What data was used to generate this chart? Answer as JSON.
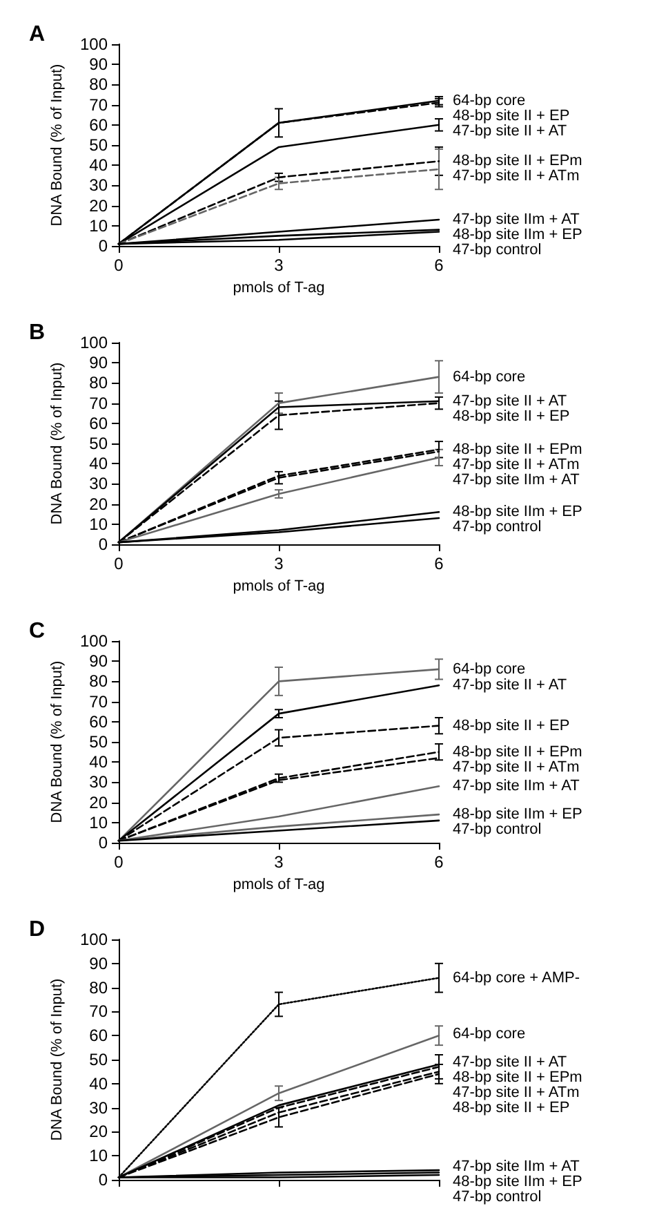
{
  "chart_data": [
    {
      "type": "line",
      "title": "A",
      "xlabel": "pmols of T-ag",
      "ylabel": "DNA Bound (% of Input)",
      "x": [
        0,
        3,
        6
      ],
      "xlim": [
        0,
        6
      ],
      "xticks": [
        0,
        3,
        6
      ],
      "ylim": [
        0,
        100
      ],
      "yticks": [
        0,
        10,
        20,
        30,
        40,
        50,
        60,
        70,
        80,
        90,
        100
      ],
      "series": [
        {
          "name": "64-bp core",
          "color": "#000000",
          "line_style": "solid",
          "values": [
            1,
            61,
            72
          ],
          "errors": [
            null,
            7,
            2
          ]
        },
        {
          "name": "48-bp site II + EP",
          "color": "#000000",
          "line_style": "dashed",
          "values": [
            1,
            61,
            71
          ],
          "errors": [
            null,
            null,
            2
          ]
        },
        {
          "name": "47-bp site II + AT",
          "color": "#000000",
          "line_style": "solid",
          "values": [
            1,
            49,
            60
          ],
          "errors": [
            null,
            null,
            3
          ]
        },
        {
          "name": "48-bp site II + EPm",
          "color": "#000000",
          "line_style": "dashed",
          "values": [
            1,
            34,
            42
          ],
          "errors": [
            null,
            2,
            7
          ]
        },
        {
          "name": "47-bp site II + ATm",
          "color": "#666666",
          "line_style": "dashed",
          "values": [
            1,
            31,
            38
          ],
          "errors": [
            null,
            3,
            10
          ]
        },
        {
          "name": "47-bp site IIm + AT",
          "color": "#000000",
          "line_style": "solid",
          "values": [
            1,
            7,
            13
          ],
          "errors": [
            null,
            null,
            null
          ]
        },
        {
          "name": "48-bp site IIm + EP",
          "color": "#000000",
          "line_style": "solid",
          "values": [
            1,
            5,
            8
          ],
          "errors": [
            null,
            null,
            null
          ]
        },
        {
          "name": "47-bp control",
          "color": "#000000",
          "line_style": "solid",
          "values": [
            1,
            3,
            7
          ],
          "errors": [
            null,
            null,
            null
          ]
        }
      ]
    },
    {
      "type": "line",
      "title": "B",
      "xlabel": "pmols of T-ag",
      "ylabel": "DNA Bound (% of Input)",
      "x": [
        0,
        3,
        6
      ],
      "xlim": [
        0,
        6
      ],
      "xticks": [
        0,
        3,
        6
      ],
      "ylim": [
        0,
        100
      ],
      "yticks": [
        0,
        10,
        20,
        30,
        40,
        50,
        60,
        70,
        80,
        90,
        100
      ],
      "series": [
        {
          "name": "64-bp core",
          "color": "#666666",
          "line_style": "solid",
          "values": [
            1,
            70,
            83
          ],
          "errors": [
            null,
            5,
            8
          ]
        },
        {
          "name": "47-bp site II + AT",
          "color": "#000000",
          "line_style": "solid",
          "values": [
            1,
            68,
            71
          ],
          "errors": [
            null,
            null,
            null
          ]
        },
        {
          "name": "48-bp site II + EP",
          "color": "#000000",
          "line_style": "dashed",
          "values": [
            1,
            64,
            70
          ],
          "errors": [
            null,
            7,
            3
          ]
        },
        {
          "name": "48-bp site II + EPm",
          "color": "#000000",
          "line_style": "dashed",
          "values": [
            1,
            34,
            47
          ],
          "errors": [
            null,
            null,
            4
          ]
        },
        {
          "name": "47-bp site II + ATm",
          "color": "#000000",
          "line_style": "dashed",
          "values": [
            1,
            33,
            46
          ],
          "errors": [
            null,
            3,
            null
          ]
        },
        {
          "name": "47-bp site IIm + AT",
          "color": "#666666",
          "line_style": "solid",
          "values": [
            1,
            25,
            43
          ],
          "errors": [
            null,
            2,
            4
          ]
        },
        {
          "name": "48-bp site IIm + EP",
          "color": "#000000",
          "line_style": "solid",
          "values": [
            1,
            7,
            16
          ],
          "errors": [
            null,
            null,
            null
          ]
        },
        {
          "name": "47-bp control",
          "color": "#000000",
          "line_style": "solid",
          "values": [
            1,
            6,
            13
          ],
          "errors": [
            null,
            null,
            null
          ]
        }
      ]
    },
    {
      "type": "line",
      "title": "C",
      "xlabel": "pmols of T-ag",
      "ylabel": "DNA Bound (% of Input)",
      "x": [
        0,
        3,
        6
      ],
      "xlim": [
        0,
        6
      ],
      "xticks": [
        0,
        3,
        6
      ],
      "ylim": [
        0,
        100
      ],
      "yticks": [
        0,
        10,
        20,
        30,
        40,
        50,
        60,
        70,
        80,
        90,
        100
      ],
      "series": [
        {
          "name": "64-bp core",
          "color": "#666666",
          "line_style": "solid",
          "values": [
            1,
            80,
            86
          ],
          "errors": [
            null,
            7,
            5
          ]
        },
        {
          "name": "47-bp site II + AT",
          "color": "#000000",
          "line_style": "solid",
          "values": [
            1,
            64,
            78
          ],
          "errors": [
            null,
            2,
            null
          ]
        },
        {
          "name": "48-bp site II + EP",
          "color": "#000000",
          "line_style": "dashed",
          "values": [
            1,
            52,
            58
          ],
          "errors": [
            null,
            4,
            4
          ]
        },
        {
          "name": "48-bp site II + EPm",
          "color": "#000000",
          "line_style": "dashed",
          "values": [
            1,
            32,
            45
          ],
          "errors": [
            null,
            2,
            4
          ]
        },
        {
          "name": "47-bp site II + ATm",
          "color": "#000000",
          "line_style": "dashed",
          "values": [
            1,
            31,
            42
          ],
          "errors": [
            null,
            null,
            null
          ]
        },
        {
          "name": "47-bp site IIm + AT",
          "color": "#666666",
          "line_style": "solid",
          "values": [
            1,
            13,
            28
          ],
          "errors": [
            null,
            null,
            null
          ]
        },
        {
          "name": "48-bp site IIm + EP",
          "color": "#666666",
          "line_style": "solid",
          "values": [
            1,
            8,
            14
          ],
          "errors": [
            null,
            null,
            null
          ]
        },
        {
          "name": "47-bp control",
          "color": "#000000",
          "line_style": "solid",
          "values": [
            1,
            6,
            11
          ],
          "errors": [
            null,
            null,
            null
          ]
        }
      ]
    },
    {
      "type": "line",
      "title": "D",
      "ylabel": "DNA Bound (% of Input)",
      "tick_labels": "y",
      "x": [
        0,
        3,
        6
      ],
      "xlim": [
        0,
        6
      ],
      "xticks": [
        0,
        3,
        6
      ],
      "ylim": [
        0,
        100
      ],
      "yticks": [
        0,
        10,
        20,
        30,
        40,
        50,
        60,
        70,
        80,
        90,
        100
      ],
      "series": [
        {
          "name": "64-bp core + AMP-",
          "color": "#000000",
          "line_style": "dotted",
          "values": [
            1,
            73,
            84
          ],
          "errors": [
            null,
            5,
            6
          ]
        },
        {
          "name": "64-bp core",
          "color": "#666666",
          "line_style": "solid",
          "values": [
            1,
            36,
            60
          ],
          "errors": [
            null,
            3,
            4
          ]
        },
        {
          "name": "47-bp site II + AT",
          "color": "#000000",
          "line_style": "solid",
          "values": [
            1,
            31,
            48
          ],
          "errors": [
            null,
            null,
            null
          ]
        },
        {
          "name": "48-bp site II + EPm",
          "color": "#000000",
          "line_style": "dashed",
          "values": [
            1,
            30,
            47
          ],
          "errors": [
            null,
            null,
            5
          ]
        },
        {
          "name": "47-bp site II + ATm",
          "color": "#000000",
          "line_style": "dashed",
          "values": [
            1,
            28,
            45
          ],
          "errors": [
            null,
            null,
            null
          ]
        },
        {
          "name": "48-bp site II + EP",
          "color": "#000000",
          "line_style": "dashed",
          "values": [
            1,
            26,
            44
          ],
          "errors": [
            null,
            4,
            4
          ]
        },
        {
          "name": "47-bp site IIm + AT",
          "color": "#000000",
          "line_style": "solid",
          "values": [
            1,
            3,
            4
          ],
          "errors": [
            null,
            null,
            null
          ]
        },
        {
          "name": "48-bp site IIm + EP",
          "color": "#000000",
          "line_style": "solid",
          "values": [
            1,
            2,
            3
          ],
          "errors": [
            null,
            null,
            null
          ]
        },
        {
          "name": "47-bp control",
          "color": "#000000",
          "line_style": "solid",
          "values": [
            1,
            1,
            2
          ],
          "errors": [
            null,
            null,
            null
          ]
        }
      ]
    }
  ]
}
